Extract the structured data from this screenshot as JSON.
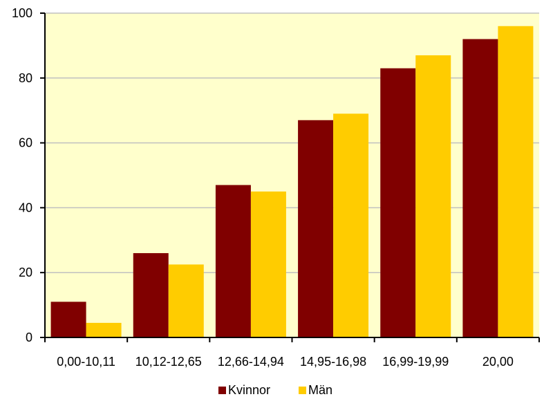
{
  "chart_data": {
    "type": "bar",
    "categories": [
      "0,00-10,11",
      "10,12-12,65",
      "12,66-14,94",
      "14,95-16,98",
      "16,99-19,99",
      "20,00"
    ],
    "series": [
      {
        "name": "Kvinnor",
        "color": "#800000",
        "values": [
          11,
          26,
          47,
          67,
          83,
          92
        ]
      },
      {
        "name": "Män",
        "color": "#FFCC00",
        "values": [
          4.5,
          22.5,
          45,
          69,
          87,
          96
        ]
      }
    ],
    "ylim": [
      0,
      100
    ],
    "yticks": [
      0,
      20,
      40,
      60,
      80,
      100
    ],
    "title": "",
    "xlabel": "",
    "ylabel": "",
    "grid": true,
    "legend_position": "bottom",
    "plot_background": "#FFFFCC",
    "gridline_color": "#C0C0C0"
  }
}
